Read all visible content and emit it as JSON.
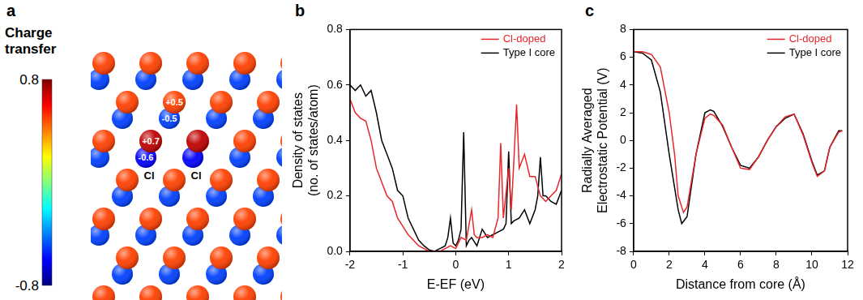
{
  "chart_data": [
    {
      "type": "diagram",
      "panel": "a",
      "colorbar": {
        "title": "Charge transfer",
        "range": [
          -0.8,
          0.8
        ],
        "ticks": [
          0.8,
          -0.8
        ]
      },
      "host": {
        "cation_charge": 0.5,
        "anion_charge": -0.5
      },
      "sites": [
        {
          "cation": {
            "value": 0.5,
            "label": "+0.5"
          },
          "anion": {
            "value": -0.5,
            "label": "-0.5"
          }
        },
        {
          "cation": {
            "value": 0.7,
            "label": "+0.7"
          },
          "anion": {
            "value": -0.6,
            "label": "-0.6"
          },
          "dopant": "Cl"
        },
        {
          "cation": {
            "value": 0.7
          },
          "anion": {
            "value": -0.6
          },
          "dopant": "Cl"
        }
      ]
    },
    {
      "type": "line",
      "panel": "b",
      "x_label": "E-EF (eV)",
      "y_label": [
        "Density of states",
        "(no. of states/atom)"
      ],
      "xlim": [
        -2,
        2
      ],
      "xticks": [
        -2,
        -1,
        0,
        1,
        2
      ],
      "ylim": [
        0,
        0.8
      ],
      "yticks": [
        {
          "value": 0,
          "label": "0.0"
        },
        0.2,
        0.4,
        0.6,
        0.8
      ],
      "grid": false,
      "legend": "upper right",
      "series": [
        {
          "name": "Cl-doped",
          "color": "#e8262b",
          "line_style": "solid",
          "x": [
            -2,
            -1.9,
            -1.8,
            -1.7,
            -1.6,
            -1.5,
            -1.4,
            -1.3,
            -1.2,
            -1.1,
            -1,
            -0.9,
            -0.8,
            -0.7,
            -0.6,
            -0.5,
            -0.4,
            -0.3,
            -0.2,
            -0.1,
            0,
            0.1,
            0.2,
            0.3,
            0.35,
            0.4,
            0.5,
            0.6,
            0.7,
            0.8,
            0.85,
            0.9,
            1,
            1.05,
            1.1,
            1.15,
            1.2,
            1.3,
            1.4,
            1.5,
            1.6,
            1.7,
            1.8,
            1.9,
            2
          ],
          "values": [
            0.55,
            0.5,
            0.48,
            0.47,
            0.4,
            0.3,
            0.25,
            0.2,
            0.18,
            0.12,
            0.09,
            0.06,
            0.04,
            0.02,
            0.01,
            0,
            0,
            0,
            0.01,
            0.02,
            0.01,
            0.05,
            0.04,
            0.15,
            0.06,
            0.05,
            0.05,
            0.06,
            0.05,
            0.12,
            0.39,
            0.12,
            0.3,
            0.15,
            0.33,
            0.53,
            0.3,
            0.35,
            0.27,
            0.27,
            0.2,
            0.18,
            0.2,
            0.22,
            0.28
          ]
        },
        {
          "name": "Type I core",
          "color": "#000000",
          "line_style": "solid",
          "x": [
            -2,
            -1.9,
            -1.8,
            -1.7,
            -1.6,
            -1.5,
            -1.4,
            -1.3,
            -1.2,
            -1.1,
            -1,
            -0.9,
            -0.8,
            -0.7,
            -0.6,
            -0.5,
            -0.4,
            -0.3,
            -0.2,
            -0.15,
            -0.1,
            -0.05,
            0,
            0.05,
            0.1,
            0.15,
            0.2,
            0.25,
            0.3,
            0.4,
            0.5,
            0.6,
            0.7,
            0.8,
            0.9,
            0.95,
            1,
            1.05,
            1.1,
            1.2,
            1.3,
            1.4,
            1.5,
            1.55,
            1.6,
            1.65,
            1.7,
            1.8,
            1.9,
            2
          ],
          "values": [
            0.6,
            0.58,
            0.6,
            0.56,
            0.58,
            0.5,
            0.4,
            0.35,
            0.3,
            0.22,
            0.2,
            0.12,
            0.08,
            0.04,
            0.02,
            0.005,
            0,
            0.01,
            0.02,
            0.05,
            0.12,
            0.03,
            0.02,
            0.04,
            0.08,
            0.43,
            0.02,
            0.04,
            0.05,
            0.02,
            0.08,
            0.05,
            0.06,
            0.07,
            0.08,
            0.1,
            0.36,
            0.1,
            0.11,
            0.12,
            0.15,
            0.1,
            0.15,
            0.2,
            0.34,
            0.2,
            0.2,
            0.18,
            0.17,
            0.22
          ]
        }
      ]
    },
    {
      "type": "line",
      "panel": "c",
      "x_label": "Distance from core (Å)",
      "y_label": [
        "Radially Averaged",
        "Electrostatic Potential (V)"
      ],
      "xlim": [
        0,
        12
      ],
      "xticks": [
        0,
        2,
        4,
        6,
        8,
        10,
        12
      ],
      "ylim": [
        -8,
        8
      ],
      "yticks": [
        -8,
        -6,
        -4,
        -2,
        0,
        2,
        4,
        6,
        8
      ],
      "grid": false,
      "legend": "upper right",
      "series": [
        {
          "name": "Cl-doped",
          "color": "#e8262b",
          "line_style": "solid",
          "x": [
            0,
            0.5,
            1,
            1.5,
            2,
            2.3,
            2.5,
            2.8,
            3,
            3.5,
            4,
            4.3,
            4.5,
            5,
            5.5,
            6,
            6.5,
            7,
            7.5,
            8,
            8.5,
            9,
            9.5,
            10,
            10.3,
            10.7,
            11,
            11.5,
            11.7
          ],
          "values": [
            6.4,
            6.4,
            6.2,
            5.3,
            2,
            -1,
            -4,
            -5.2,
            -4.8,
            -1,
            1.6,
            1.9,
            1.8,
            1.1,
            -0.5,
            -2,
            -2.1,
            -1.2,
            0,
            1,
            1.7,
            1.9,
            0.4,
            -1.6,
            -2.6,
            -2.2,
            -0.5,
            0.6,
            0.7
          ]
        },
        {
          "name": "Type I core",
          "color": "#000000",
          "line_style": "solid",
          "x": [
            0,
            0.5,
            1,
            1.5,
            2,
            2.5,
            2.7,
            3,
            3.5,
            4,
            4.3,
            4.5,
            5,
            5.5,
            6,
            6.5,
            7,
            7.5,
            8,
            8.5,
            9,
            9.5,
            10,
            10.3,
            10.7,
            11,
            11.5,
            11.7
          ],
          "values": [
            6.4,
            6.3,
            5.8,
            3.5,
            -1,
            -5,
            -6,
            -5.5,
            -1,
            2,
            2.2,
            2.1,
            1,
            -0.5,
            -1.8,
            -2,
            -1.2,
            0,
            1,
            1.6,
            1.9,
            0.5,
            -1.5,
            -2.5,
            -2.2,
            -0.5,
            0.7,
            0.7
          ]
        }
      ]
    }
  ]
}
